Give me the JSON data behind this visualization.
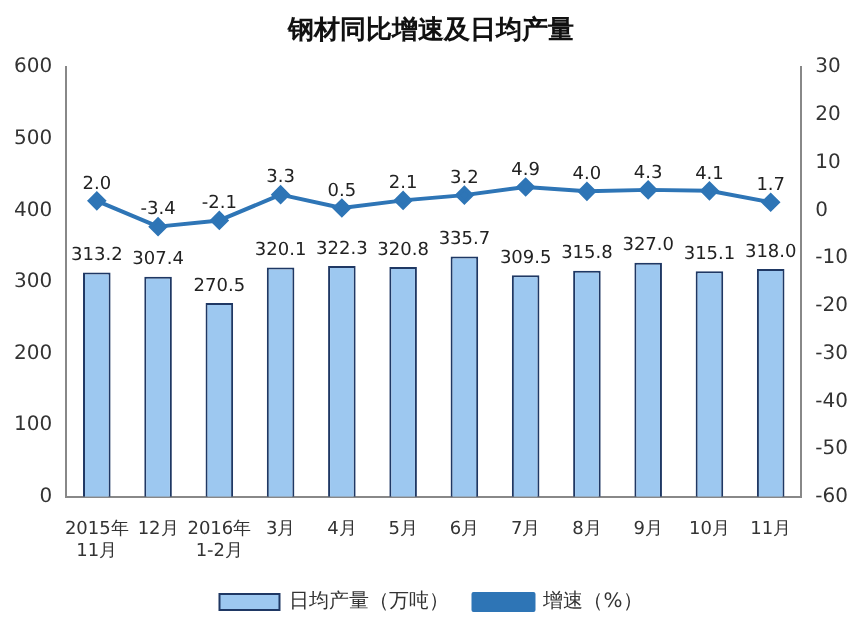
{
  "chart_data": {
    "type": "bar",
    "title": "钢材同比增速及日均产量",
    "categories": [
      "2015年\n11月",
      "12月",
      "2016年\n1-2月",
      "3月",
      "4月",
      "5月",
      "6月",
      "7月",
      "8月",
      "9月",
      "10月",
      "11月"
    ],
    "series": [
      {
        "name": "日均产量（万吨）",
        "color": "#9dc8f0",
        "values": [
          313.2,
          307.4,
          270.5,
          320.1,
          322.3,
          320.8,
          335.7,
          309.5,
          315.8,
          327.0,
          315.1,
          318.0
        ],
        "value_labels": [
          "313.2",
          "307.4",
          "270.5",
          "320.1",
          "322.3",
          "320.8",
          "335.7",
          "309.5",
          "315.8",
          "327.0",
          "315.1",
          "318.0"
        ]
      },
      {
        "name": "增速（%）",
        "type": "line",
        "axis": "y2",
        "color": "#2e75b6",
        "marker": "diamond",
        "values": [
          2.0,
          -3.4,
          -2.1,
          3.3,
          0.5,
          2.1,
          3.2,
          4.9,
          4.0,
          4.3,
          4.1,
          1.7
        ],
        "value_labels": [
          "2.0",
          "-3.4",
          "-2.1",
          "3.3",
          "0.5",
          "2.1",
          "3.2",
          "4.9",
          "4.0",
          "4.3",
          "4.1",
          "1.7"
        ]
      }
    ],
    "ylim": [
      0,
      600
    ],
    "yticks": [
      0,
      100,
      200,
      300,
      400,
      500,
      600
    ],
    "y2lim": [
      -60,
      30
    ],
    "y2ticks": [
      -60,
      -50,
      -40,
      -30,
      -20,
      -10,
      0,
      10,
      20,
      30
    ],
    "legend": "bottom",
    "grid": false
  }
}
